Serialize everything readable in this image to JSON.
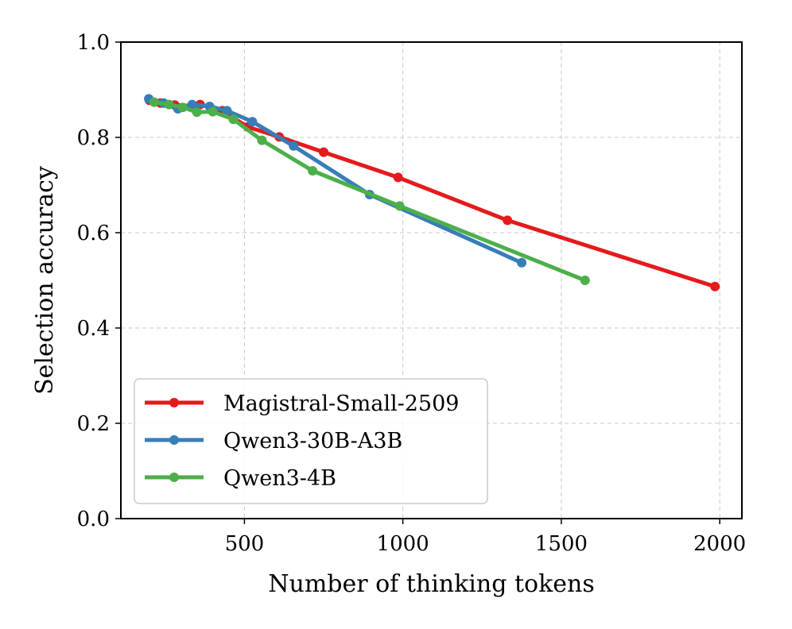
{
  "chart_data": {
    "type": "line",
    "xlabel": "Number of thinking tokens",
    "ylabel": "Selection accuracy",
    "xlim": [
      110,
      2070
    ],
    "ylim": [
      0.0,
      1.0
    ],
    "xticks": [
      500,
      1000,
      1500,
      2000
    ],
    "xtick_labels": [
      "500",
      "1000",
      "1500",
      "2000"
    ],
    "yticks": [
      0.0,
      0.2,
      0.4,
      0.6,
      0.8,
      1.0
    ],
    "ytick_labels": [
      "0.0",
      "0.2",
      "0.4",
      "0.6",
      "0.8",
      "1.0"
    ],
    "grid": true,
    "legend_position": "lower-left",
    "series": [
      {
        "name": "Magistral-Small-2509",
        "color": "#e41a1c",
        "x": [
          200,
          235,
          280,
          335,
          360,
          430,
          510,
          610,
          750,
          985,
          1330,
          1985
        ],
        "y": [
          0.878,
          0.872,
          0.868,
          0.866,
          0.869,
          0.856,
          0.822,
          0.801,
          0.769,
          0.716,
          0.626,
          0.487
        ]
      },
      {
        "name": "Qwen3-30B-A3B",
        "color": "#377eb8",
        "x": [
          198,
          245,
          290,
          335,
          390,
          445,
          525,
          655,
          895,
          1375
        ],
        "y": [
          0.881,
          0.872,
          0.86,
          0.869,
          0.865,
          0.856,
          0.833,
          0.782,
          0.68,
          0.537
        ]
      },
      {
        "name": "Qwen3-4B",
        "color": "#4daf4a",
        "x": [
          215,
          262,
          305,
          350,
          400,
          465,
          555,
          715,
          990,
          1575
        ],
        "y": [
          0.874,
          0.869,
          0.863,
          0.853,
          0.854,
          0.838,
          0.794,
          0.73,
          0.656,
          0.5
        ]
      }
    ]
  }
}
